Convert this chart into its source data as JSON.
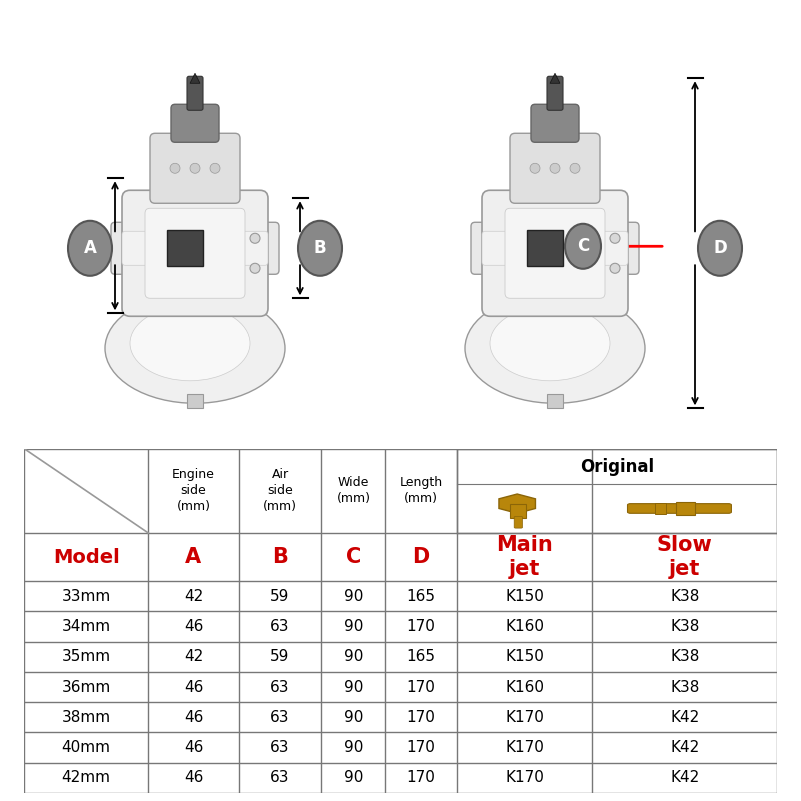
{
  "table_headers_row2": [
    "Model",
    "A",
    "B",
    "C",
    "D",
    "Main\njet",
    "Slow\njet"
  ],
  "table_data": [
    [
      "33mm",
      "42",
      "59",
      "90",
      "165",
      "K150",
      "K38"
    ],
    [
      "34mm",
      "46",
      "63",
      "90",
      "170",
      "K160",
      "K38"
    ],
    [
      "35mm",
      "42",
      "59",
      "90",
      "165",
      "K150",
      "K38"
    ],
    [
      "36mm",
      "46",
      "63",
      "90",
      "170",
      "K160",
      "K38"
    ],
    [
      "38mm",
      "46",
      "63",
      "90",
      "170",
      "K170",
      "K42"
    ],
    [
      "40mm",
      "46",
      "63",
      "90",
      "170",
      "K170",
      "K42"
    ],
    [
      "42mm",
      "46",
      "63",
      "90",
      "170",
      "K170",
      "K42"
    ]
  ],
  "header_color": "#cc0000",
  "border_color": "#777777",
  "label_gray": "#888888",
  "carb_body": "#e8e8e8",
  "carb_edge": "#aaaaaa",
  "carb_dark": "#555555",
  "carb_line": "#999999",
  "gold_fill": "#B8860B",
  "gold_edge": "#8B6508"
}
